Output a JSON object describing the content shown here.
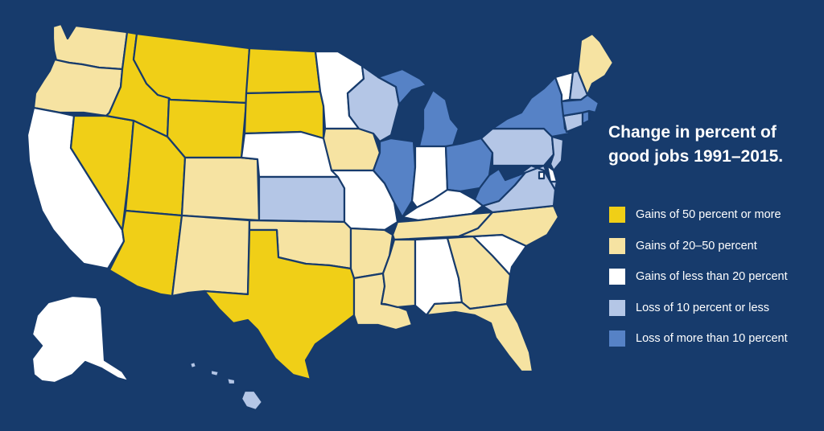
{
  "title": {
    "line1": "Change in percent of",
    "line2": "good jobs 1991–2015."
  },
  "colors": {
    "background": "#173b6c",
    "gain_50_plus": "#f0cf17",
    "gain_20_50": "#f6e3a2",
    "gain_under_20": "#ffffff",
    "loss_10_or_less": "#b4c6e6",
    "loss_over_10": "#5682c6"
  },
  "legend": [
    {
      "label": "Gains of 50 percent or more",
      "category": "gain_50_plus",
      "color": "#f0cf17"
    },
    {
      "label": "Gains of 20–50 percent",
      "category": "gain_20_50",
      "color": "#f6e3a2"
    },
    {
      "label": "Gains of less than 20 percent",
      "category": "gain_under_20",
      "color": "#ffffff"
    },
    {
      "label": "Loss of 10 percent or less",
      "category": "loss_10_or_less",
      "color": "#b4c6e6"
    },
    {
      "label": "Loss of more than 10 percent",
      "category": "loss_over_10",
      "color": "#5682c6"
    }
  ],
  "states": [
    {
      "code": "WA",
      "category": "gain_20_50"
    },
    {
      "code": "OR",
      "category": "gain_20_50"
    },
    {
      "code": "CA",
      "category": "gain_under_20"
    },
    {
      "code": "NV",
      "category": "gain_50_plus"
    },
    {
      "code": "ID",
      "category": "gain_50_plus"
    },
    {
      "code": "MT",
      "category": "gain_50_plus"
    },
    {
      "code": "WY",
      "category": "gain_50_plus"
    },
    {
      "code": "UT",
      "category": "gain_50_plus"
    },
    {
      "code": "AZ",
      "category": "gain_50_plus"
    },
    {
      "code": "CO",
      "category": "gain_20_50"
    },
    {
      "code": "NM",
      "category": "gain_20_50"
    },
    {
      "code": "ND",
      "category": "gain_50_plus"
    },
    {
      "code": "SD",
      "category": "gain_50_plus"
    },
    {
      "code": "NE",
      "category": "gain_under_20"
    },
    {
      "code": "KS",
      "category": "loss_10_or_less"
    },
    {
      "code": "OK",
      "category": "gain_20_50"
    },
    {
      "code": "TX",
      "category": "gain_50_plus"
    },
    {
      "code": "MN",
      "category": "gain_under_20"
    },
    {
      "code": "IA",
      "category": "gain_20_50"
    },
    {
      "code": "MO",
      "category": "gain_under_20"
    },
    {
      "code": "AR",
      "category": "gain_20_50"
    },
    {
      "code": "LA",
      "category": "gain_20_50"
    },
    {
      "code": "WI",
      "category": "loss_10_or_less"
    },
    {
      "code": "IL",
      "category": "loss_over_10"
    },
    {
      "code": "MI",
      "category": "loss_over_10"
    },
    {
      "code": "IN",
      "category": "gain_under_20"
    },
    {
      "code": "OH",
      "category": "loss_over_10"
    },
    {
      "code": "KY",
      "category": "gain_under_20"
    },
    {
      "code": "TN",
      "category": "gain_20_50"
    },
    {
      "code": "MS",
      "category": "gain_20_50"
    },
    {
      "code": "AL",
      "category": "gain_under_20"
    },
    {
      "code": "GA",
      "category": "gain_20_50"
    },
    {
      "code": "FL",
      "category": "gain_20_50"
    },
    {
      "code": "SC",
      "category": "gain_under_20"
    },
    {
      "code": "NC",
      "category": "gain_20_50"
    },
    {
      "code": "VA",
      "category": "loss_10_or_less"
    },
    {
      "code": "WV",
      "category": "loss_over_10"
    },
    {
      "code": "PA",
      "category": "loss_10_or_less"
    },
    {
      "code": "NY",
      "category": "loss_over_10"
    },
    {
      "code": "VT",
      "category": "gain_under_20"
    },
    {
      "code": "NH",
      "category": "loss_10_or_less"
    },
    {
      "code": "ME",
      "category": "gain_20_50"
    },
    {
      "code": "MA",
      "category": "loss_over_10"
    },
    {
      "code": "RI",
      "category": "loss_over_10"
    },
    {
      "code": "CT",
      "category": "loss_10_or_less"
    },
    {
      "code": "NJ",
      "category": "loss_10_or_less"
    },
    {
      "code": "DE",
      "category": "gain_under_20"
    },
    {
      "code": "MD",
      "category": "loss_10_or_less"
    },
    {
      "code": "DC",
      "category": "gain_under_20"
    },
    {
      "code": "AK",
      "category": "gain_under_20"
    },
    {
      "code": "HI",
      "category": "loss_10_or_less"
    }
  ]
}
